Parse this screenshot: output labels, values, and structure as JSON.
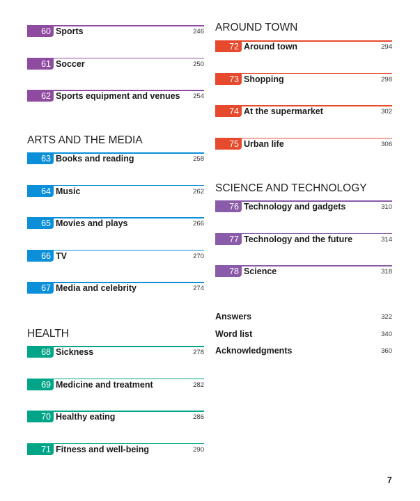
{
  "colors": {
    "sports": "#8f4b9f",
    "arts": "#0a8fd8",
    "health": "#00a487",
    "town": "#e6492b",
    "science": "#8a5ba9"
  },
  "left_column": [
    {
      "heading": "",
      "color_key": "sports",
      "items": [
        {
          "number": "60",
          "title": "Sports",
          "page": "246"
        },
        {
          "number": "61",
          "title": "Soccer",
          "page": "250"
        },
        {
          "number": "62",
          "title": "Sports equipment and venues",
          "page": "254"
        }
      ]
    },
    {
      "heading": "ARTS AND THE MEDIA",
      "color_key": "arts",
      "items": [
        {
          "number": "63",
          "title": "Books and reading",
          "page": "258"
        },
        {
          "number": "64",
          "title": "Music",
          "page": "262"
        },
        {
          "number": "65",
          "title": "Movies and plays",
          "page": "266"
        },
        {
          "number": "66",
          "title": "TV",
          "page": "270"
        },
        {
          "number": "67",
          "title": "Media and celebrity",
          "page": "274"
        }
      ]
    },
    {
      "heading": "HEALTH",
      "color_key": "health",
      "items": [
        {
          "number": "68",
          "title": "Sickness",
          "page": "278"
        },
        {
          "number": "69",
          "title": "Medicine and treatment",
          "page": "282"
        },
        {
          "number": "70",
          "title": "Healthy eating",
          "page": "286"
        },
        {
          "number": "71",
          "title": "Fitness and well-being",
          "page": "290"
        }
      ]
    }
  ],
  "right_column": [
    {
      "heading": "AROUND TOWN",
      "color_key": "town",
      "items": [
        {
          "number": "72",
          "title": "Around town",
          "page": "294"
        },
        {
          "number": "73",
          "title": "Shopping",
          "page": "298"
        },
        {
          "number": "74",
          "title": "At the supermarket",
          "page": "302"
        },
        {
          "number": "75",
          "title": "Urban life",
          "page": "306"
        }
      ]
    },
    {
      "heading": "SCIENCE AND TECHNOLOGY",
      "color_key": "science",
      "items": [
        {
          "number": "76",
          "title": "Technology and gadgets",
          "page": "310"
        },
        {
          "number": "77",
          "title": "Technology and the future",
          "page": "314"
        },
        {
          "number": "78",
          "title": "Science",
          "page": "318"
        }
      ]
    }
  ],
  "back_matter": [
    {
      "title": "Answers",
      "page": "322"
    },
    {
      "title": "Word list",
      "page": "340"
    },
    {
      "title": "Acknowledgments",
      "page": "360"
    }
  ],
  "folio": "7"
}
